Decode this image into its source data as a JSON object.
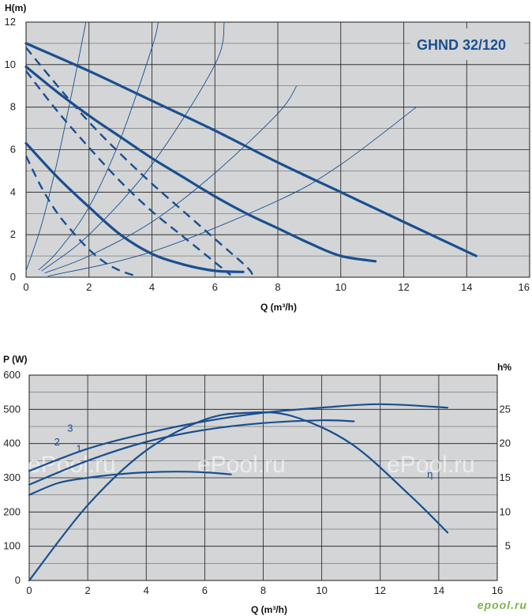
{
  "chart_data": [
    {
      "type": "line",
      "title": "GHND 32/120",
      "xlabel": "Q (m³/h)",
      "ylabel": "H(m)",
      "xlim": [
        0,
        16
      ],
      "ylim": [
        0,
        12
      ],
      "xticks": [
        0,
        2,
        4,
        6,
        8,
        10,
        12,
        14,
        16
      ],
      "yticks": [
        0,
        2,
        4,
        6,
        8,
        10,
        12
      ],
      "grid": true,
      "series": [
        {
          "style": "thick",
          "x": [
            0,
            2,
            4,
            6,
            8,
            10,
            12,
            14.3
          ],
          "y": [
            11.0,
            9.7,
            8.3,
            6.9,
            5.4,
            4.0,
            2.6,
            1.0
          ]
        },
        {
          "style": "thick",
          "x": [
            0,
            1,
            2,
            3,
            4,
            5,
            6,
            7,
            8,
            9,
            10,
            11.1
          ],
          "y": [
            9.9,
            8.7,
            7.6,
            6.6,
            5.6,
            4.7,
            3.8,
            3.0,
            2.3,
            1.6,
            1.0,
            0.75
          ]
        },
        {
          "style": "thick",
          "x": [
            0,
            1,
            2,
            3,
            4,
            5,
            6,
            6.9
          ],
          "y": [
            6.3,
            4.7,
            3.3,
            2.0,
            1.1,
            0.6,
            0.3,
            0.25
          ]
        },
        {
          "style": "dashed",
          "x": [
            0,
            1,
            2,
            3,
            4,
            5,
            6,
            7,
            7.2
          ],
          "y": [
            10.8,
            9.0,
            7.3,
            5.8,
            4.4,
            3.1,
            1.8,
            0.5,
            0.1
          ]
        },
        {
          "style": "dashed",
          "x": [
            0,
            1,
            2,
            3,
            4,
            5,
            6,
            6.5
          ],
          "y": [
            9.7,
            7.8,
            6.1,
            4.5,
            3.1,
            1.9,
            0.7,
            0.1
          ]
        },
        {
          "style": "dashed",
          "x": [
            0,
            0.5,
            1,
            1.5,
            2,
            2.5,
            3,
            3.5
          ],
          "y": [
            5.7,
            4.2,
            3.0,
            2.1,
            1.3,
            0.7,
            0.3,
            0.05
          ]
        },
        {
          "style": "thin",
          "x": [
            0,
            0.5,
            1,
            1.5,
            1.9
          ],
          "y": [
            0.3,
            2.5,
            5.5,
            9.0,
            12.0
          ]
        },
        {
          "style": "thin",
          "x": [
            0.4,
            1,
            2,
            3,
            4,
            4.2
          ],
          "y": [
            0.35,
            1.2,
            3.3,
            6.5,
            10.8,
            12.0
          ]
        },
        {
          "style": "thin",
          "x": [
            0.5,
            2,
            4,
            6,
            6.3
          ],
          "y": [
            0.3,
            2.0,
            5.3,
            10.0,
            12.0
          ]
        },
        {
          "style": "thin",
          "x": [
            0.6,
            2,
            4,
            6,
            8,
            8.6
          ],
          "y": [
            0.2,
            1.0,
            2.6,
            4.9,
            7.7,
            9.0
          ]
        },
        {
          "style": "thin",
          "x": [
            0.7,
            4,
            8,
            10,
            12.4
          ],
          "y": [
            0.05,
            1.2,
            3.6,
            5.3,
            8.0
          ]
        }
      ]
    },
    {
      "type": "line",
      "xlabel": "Q (m³/h)",
      "ylabel": "P (W)",
      "y2label": "h%",
      "xlim": [
        0,
        16
      ],
      "ylim": [
        0,
        600
      ],
      "y2lim": [
        0,
        30
      ],
      "xticks": [
        0,
        2,
        4,
        6,
        8,
        10,
        12,
        14,
        16
      ],
      "yticks": [
        0,
        100,
        200,
        300,
        400,
        500,
        600
      ],
      "y2ticks": [
        5,
        10,
        15,
        20,
        25
      ],
      "grid": true,
      "series": [
        {
          "name": "3",
          "x": [
            0,
            2,
            4,
            6,
            8,
            10,
            12,
            14.3
          ],
          "y": [
            320,
            385,
            430,
            465,
            490,
            505,
            515,
            505
          ]
        },
        {
          "name": "2",
          "x": [
            0,
            2,
            4,
            6,
            8,
            10,
            11.1
          ],
          "y": [
            280,
            350,
            405,
            440,
            460,
            468,
            465
          ]
        },
        {
          "name": "1",
          "x": [
            0,
            1,
            2,
            3,
            4,
            5,
            6,
            6.9
          ],
          "y": [
            250,
            285,
            300,
            310,
            316,
            318,
            316,
            310
          ]
        },
        {
          "name": "η",
          "axis": "y2",
          "x": [
            0,
            2,
            4,
            6,
            7.5,
            9,
            11,
            13,
            14.3
          ],
          "y": [
            0,
            11.0,
            19.0,
            23.5,
            24.5,
            24.0,
            20.0,
            12.5,
            7.0
          ]
        }
      ]
    }
  ],
  "watermarks": [
    "ePool.ru",
    "ePool.ru",
    "ePool.ru"
  ],
  "logo": "epool.ru",
  "colors": {
    "plot_bg": "#d3d5d7",
    "grid": "#1a1a1a",
    "curve": "#1a4f8f",
    "text": "#222222"
  }
}
